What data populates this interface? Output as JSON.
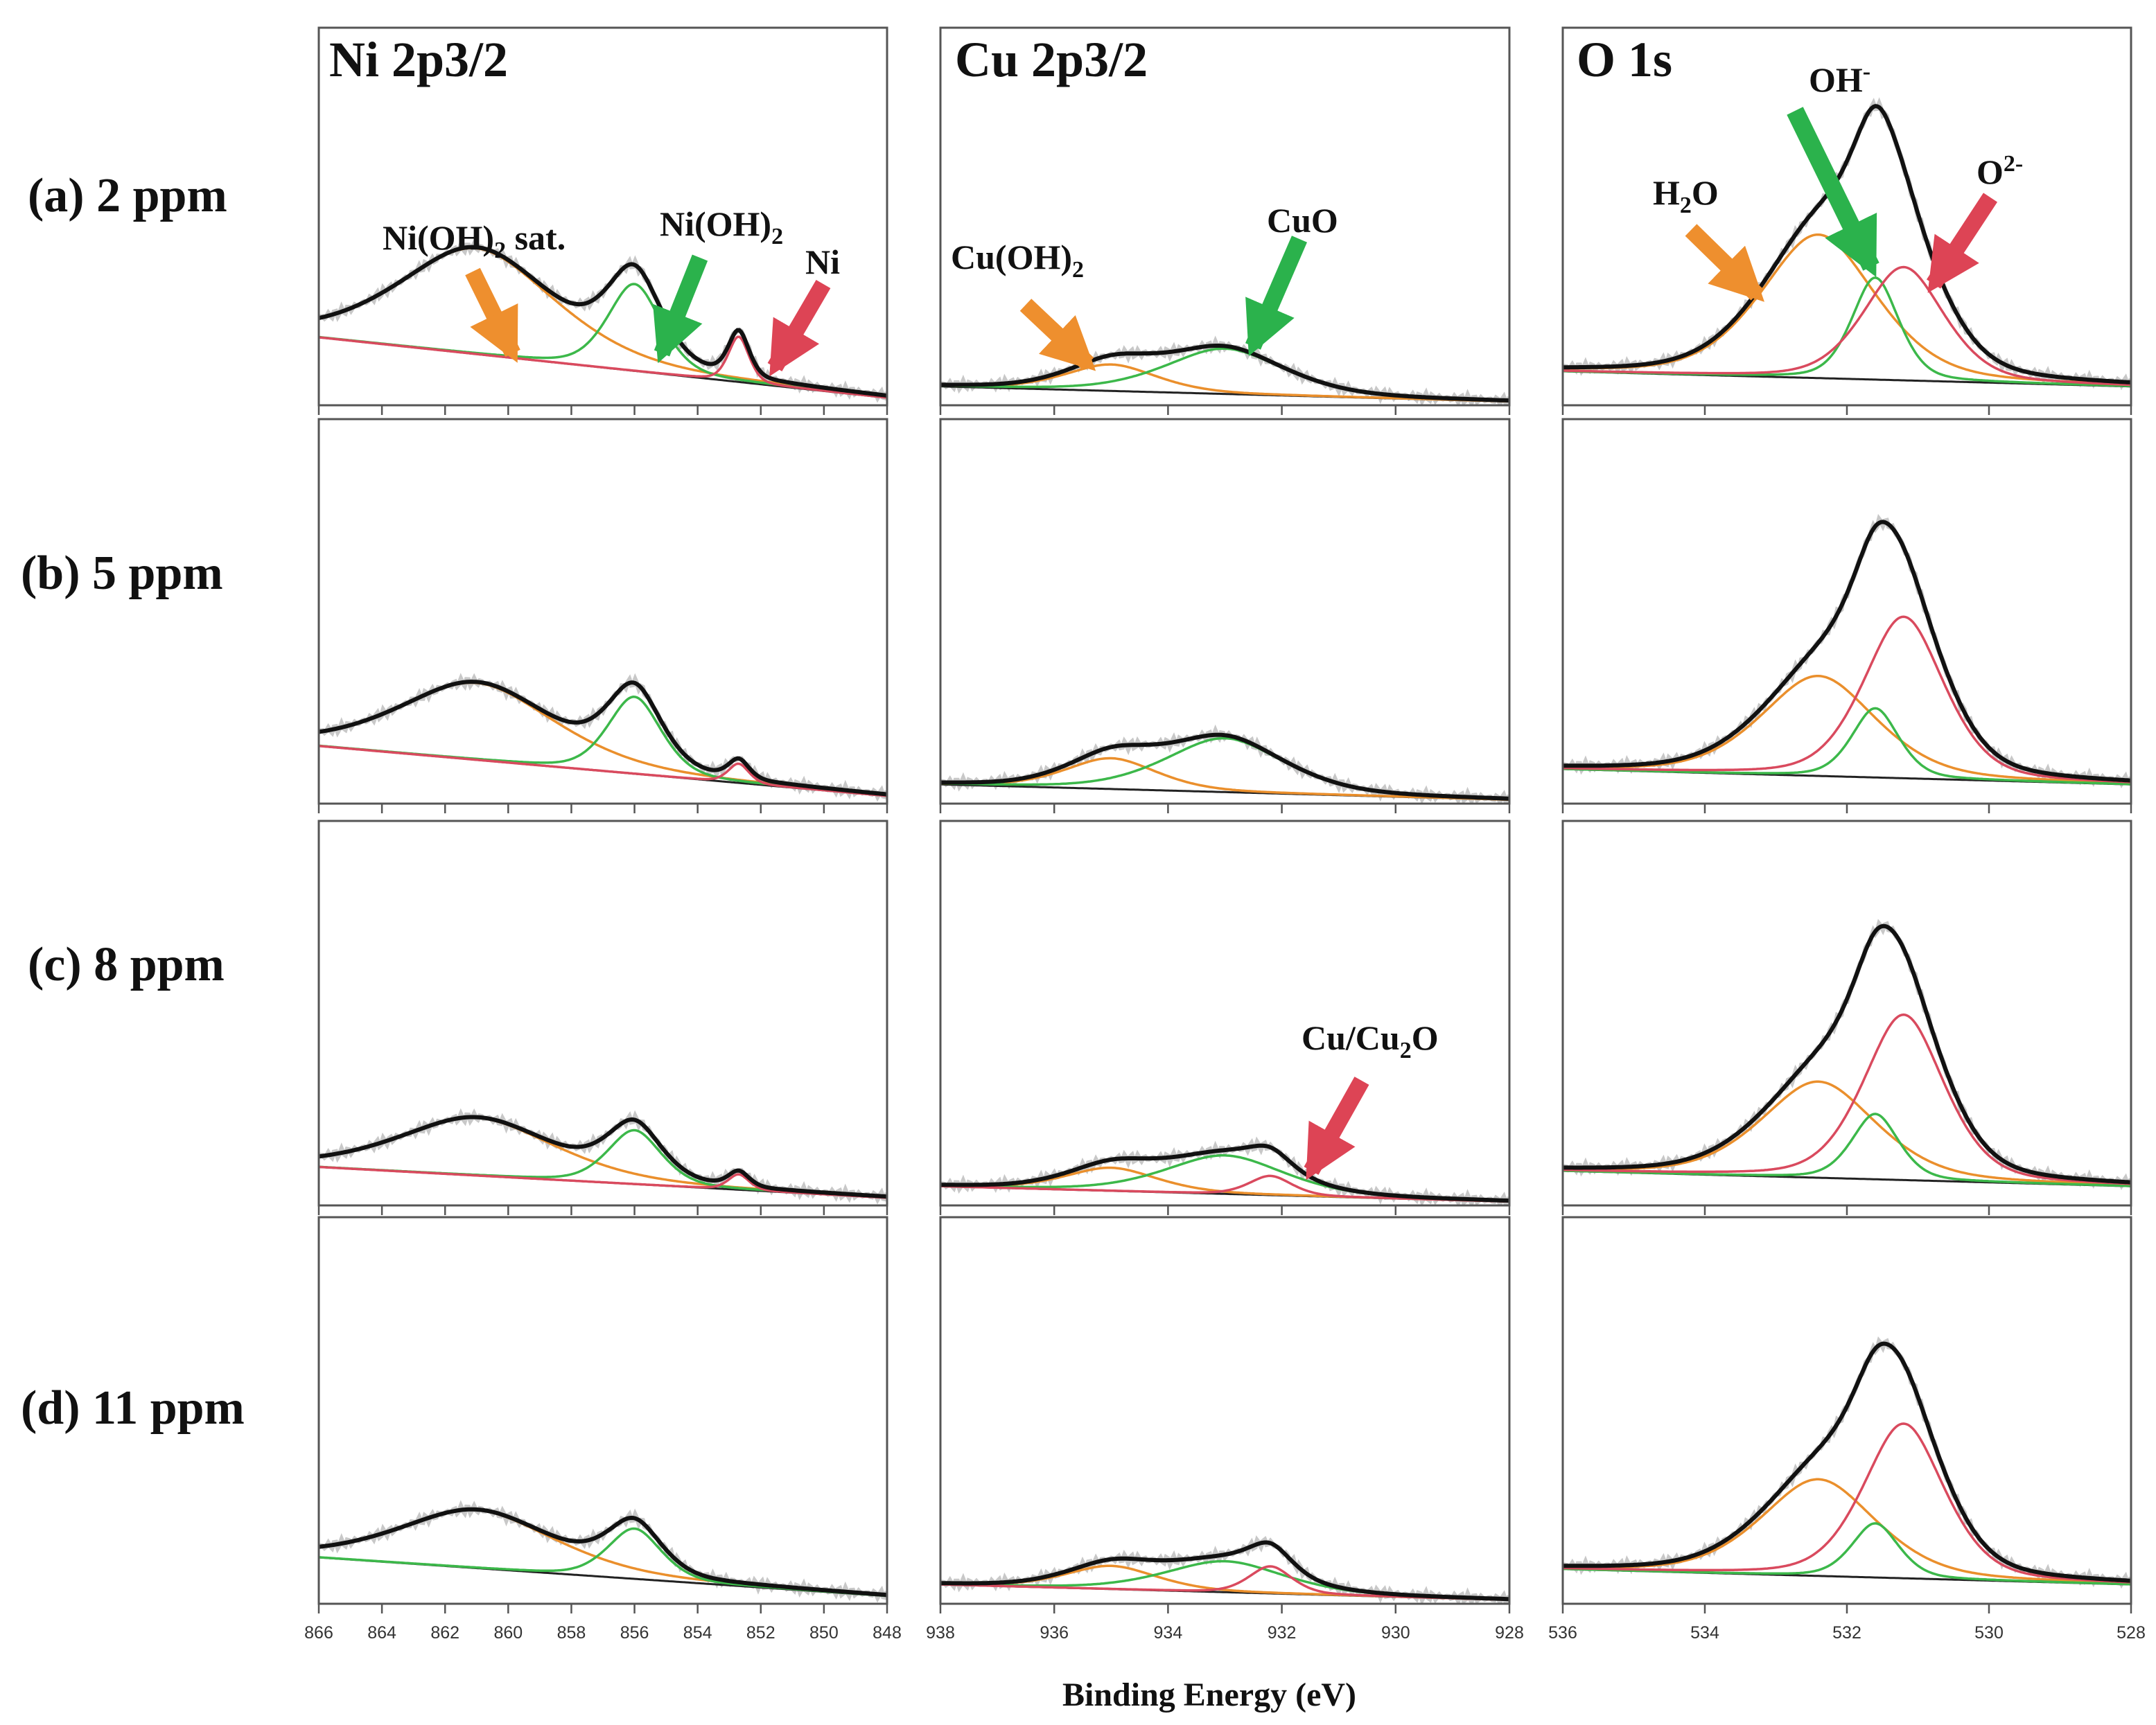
{
  "colors": {
    "envelope": "#111111",
    "raw": "#c8c8c8",
    "background": "#222222",
    "orange": "#ea8f2c",
    "green": "#3cb84a",
    "red": "#d94a5e",
    "arrow_orange": "#ee8f2e",
    "arrow_green": "#2bb24c",
    "arrow_red": "#dd4455"
  },
  "row_labels": [
    "(a) 2 ppm",
    "(b) 5 ppm",
    "(c) 8 ppm",
    "(d) 11 ppm"
  ],
  "column_titles": [
    "Ni 2p3/2",
    "Cu 2p3/2",
    "O 1s"
  ],
  "shared_xlabel": "Binding Energy (eV)",
  "annotations": {
    "ni_sat": {
      "main": "Ni(OH)",
      "sub": "2",
      "tail": " sat."
    },
    "ni_oh": {
      "main": "Ni(OH)",
      "sub": "2"
    },
    "ni_metal": "Ni",
    "cu_oh": {
      "main": "Cu(OH)",
      "sub": "2"
    },
    "cuo": "CuO",
    "cu_cu2o": {
      "main": "Cu/Cu",
      "sub": "2",
      "tail": "O"
    },
    "h2o": {
      "main": "H",
      "sub": "2",
      "tail": "O"
    },
    "oh": {
      "main": "OH",
      "sup": "-"
    },
    "o2": {
      "main": "O",
      "sup": "2-"
    }
  },
  "chart_data": [
    {
      "type": "line",
      "panel": "Ni 2p3/2",
      "xlim": [
        866,
        848
      ],
      "x_ticks": [
        "866",
        "864",
        "862",
        "860",
        "858",
        "856",
        "854",
        "852",
        "850",
        "848"
      ],
      "components": [
        {
          "name": "Ni(OH)2 sat.",
          "color": "orange",
          "center": 861.0,
          "width": 2.6
        },
        {
          "name": "Ni(OH)2",
          "color": "green",
          "center": 856.0,
          "width": 0.9
        },
        {
          "name": "Ni",
          "color": "red",
          "center": 852.7,
          "width": 0.35
        }
      ],
      "rows": [
        {
          "label": "(a) 2 ppm",
          "bg": [
            0.18,
            0.02
          ],
          "amps": [
            0.28,
            0.23,
            0.12
          ]
        },
        {
          "label": "(b) 5 ppm",
          "bg": [
            0.15,
            0.02
          ],
          "amps": [
            0.2,
            0.2,
            0.05
          ]
        },
        {
          "label": "(c) 8 ppm",
          "bg": [
            0.1,
            0.02
          ],
          "amps": [
            0.15,
            0.14,
            0.04
          ]
        },
        {
          "label": "(d) 11 ppm",
          "bg": [
            0.12,
            0.02
          ],
          "amps": [
            0.15,
            0.13,
            0.0
          ]
        }
      ]
    },
    {
      "type": "line",
      "panel": "Cu 2p3/2",
      "xlim": [
        938,
        928
      ],
      "x_ticks": [
        "938",
        "936",
        "934",
        "932",
        "930",
        "928"
      ],
      "components": [
        {
          "name": "Cu(OH)2",
          "color": "orange",
          "center": 935.0,
          "width": 0.85
        },
        {
          "name": "CuO",
          "color": "green",
          "center": 933.0,
          "width": 1.1
        },
        {
          "name": "Cu/Cu2O",
          "color": "red",
          "center": 932.2,
          "width": 0.4
        }
      ],
      "rows": [
        {
          "label": "(a) 2 ppm",
          "bg": [
            0.05,
            0.01
          ],
          "amps": [
            0.07,
            0.12,
            0.0
          ]
        },
        {
          "label": "(b) 5 ppm",
          "bg": [
            0.05,
            0.01
          ],
          "amps": [
            0.08,
            0.14,
            0.0
          ]
        },
        {
          "label": "(c) 8 ppm",
          "bg": [
            0.05,
            0.01
          ],
          "amps": [
            0.06,
            0.1,
            0.05
          ]
        },
        {
          "label": "(d) 11 ppm",
          "bg": [
            0.05,
            0.01
          ],
          "amps": [
            0.06,
            0.08,
            0.07
          ]
        }
      ]
    },
    {
      "type": "line",
      "panel": "O 1s",
      "xlim": [
        536,
        528
      ],
      "x_ticks": [
        "536",
        "534",
        "532",
        "530",
        "528"
      ],
      "components": [
        {
          "name": "H2O",
          "color": "orange",
          "center": 532.4,
          "width": 0.85
        },
        {
          "name": "OH-",
          "color": "green",
          "center": 531.6,
          "width": 0.35
        },
        {
          "name": "O2-",
          "color": "red",
          "center": 531.2,
          "width": 0.6
        }
      ],
      "rows": [
        {
          "label": "(a) 2 ppm",
          "bg": [
            0.09,
            0.05
          ],
          "amps": [
            0.38,
            0.27,
            0.3
          ]
        },
        {
          "label": "(b) 5 ppm",
          "bg": [
            0.09,
            0.05
          ],
          "amps": [
            0.26,
            0.18,
            0.42
          ]
        },
        {
          "label": "(c) 8 ppm",
          "bg": [
            0.09,
            0.05
          ],
          "amps": [
            0.25,
            0.17,
            0.43
          ]
        },
        {
          "label": "(d) 11 ppm",
          "bg": [
            0.09,
            0.05
          ],
          "amps": [
            0.25,
            0.14,
            0.4
          ]
        }
      ]
    }
  ]
}
